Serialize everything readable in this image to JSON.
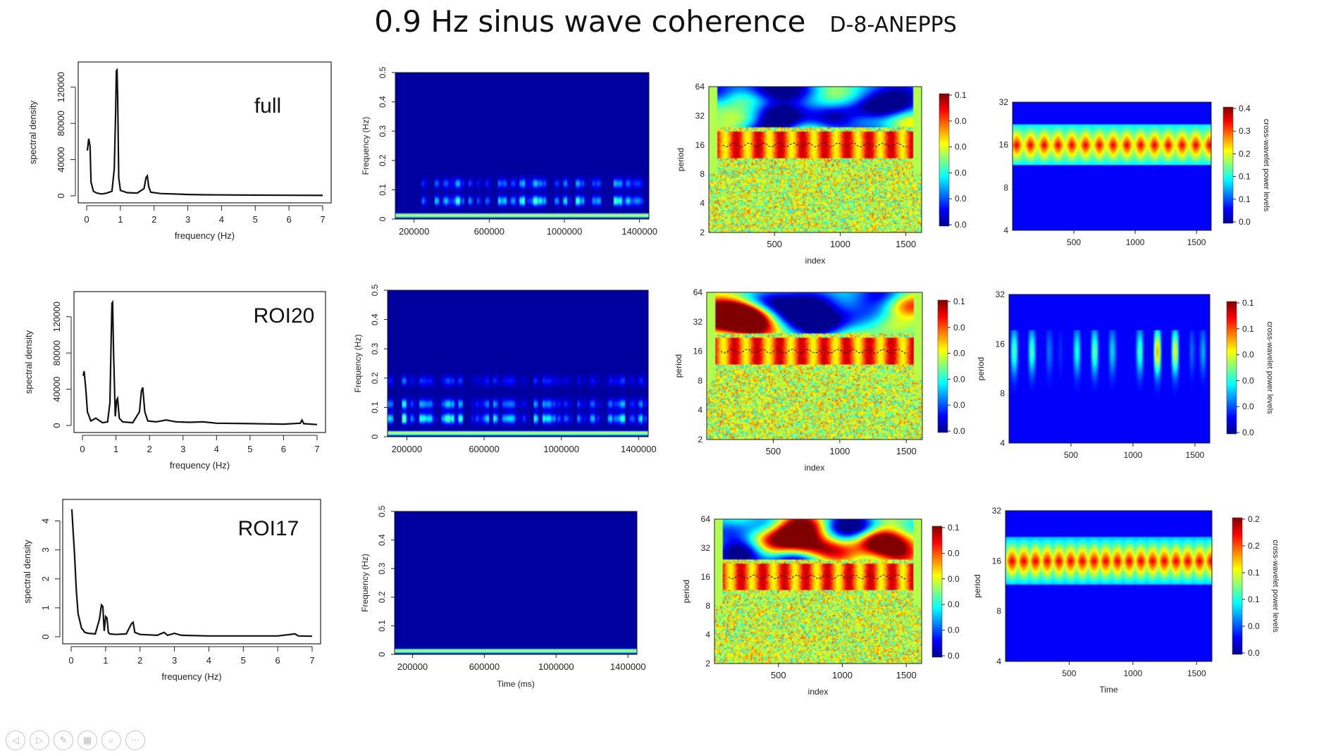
{
  "slide": {
    "title": "0.9 Hz sinus wave coherence",
    "subtitle": "D-8-ANEPPS"
  },
  "colors": {
    "spectrogram_bg": "#00008B",
    "jet": [
      "#00008F",
      "#0000FF",
      "#0080FF",
      "#00FFFF",
      "#80FF80",
      "#FFFF00",
      "#FF8000",
      "#FF0000",
      "#800000"
    ]
  },
  "nav_icons": [
    "prev-icon",
    "next-icon",
    "pen-icon",
    "slides-icon",
    "zoom-icon",
    "more-icon"
  ],
  "chart_data": [
    {
      "id": "spec-full",
      "type": "line",
      "panel_label": "full",
      "xlabel": "frequency (Hz)",
      "ylabel": "spectral density",
      "xlim": [
        0,
        7
      ],
      "ylim": [
        0,
        140000
      ],
      "xticks": [
        0,
        1,
        2,
        3,
        4,
        5,
        6,
        7
      ],
      "yticks": [
        0,
        40000,
        80000,
        120000
      ],
      "x": [
        0.02,
        0.06,
        0.1,
        0.13,
        0.2,
        0.3,
        0.45,
        0.6,
        0.75,
        0.82,
        0.86,
        0.88,
        0.9,
        0.92,
        0.95,
        1.0,
        1.2,
        1.5,
        1.7,
        1.76,
        1.8,
        1.84,
        1.9,
        2.2,
        2.6,
        3.0,
        3.5,
        4.0,
        5.0,
        6.0,
        7.0
      ],
      "y": [
        50000,
        63000,
        55000,
        15000,
        5000,
        3000,
        2000,
        3000,
        5000,
        30000,
        95000,
        138000,
        139000,
        110000,
        20000,
        6000,
        3500,
        3000,
        8000,
        20000,
        22000,
        10000,
        4000,
        2500,
        2000,
        1500,
        1200,
        1000,
        800,
        600,
        500
      ]
    },
    {
      "id": "spec-roi20",
      "type": "line",
      "panel_label": "ROI20",
      "xlabel": "frequency (Hz)",
      "ylabel": "spectral density",
      "xlim": [
        0,
        7
      ],
      "ylim": [
        0,
        140000
      ],
      "xticks": [
        0,
        1,
        2,
        3,
        4,
        5,
        6,
        7
      ],
      "yticks": [
        0,
        40000,
        80000,
        120000
      ],
      "x": [
        0.02,
        0.05,
        0.1,
        0.15,
        0.25,
        0.4,
        0.6,
        0.75,
        0.82,
        0.86,
        0.88,
        0.9,
        0.93,
        0.98,
        1.02,
        1.05,
        1.1,
        1.2,
        1.5,
        1.7,
        1.76,
        1.8,
        1.86,
        1.95,
        2.2,
        2.5,
        2.8,
        3.2,
        3.6,
        4.0,
        5.0,
        6.0,
        6.5,
        6.55,
        6.6,
        6.8,
        7.0
      ],
      "y": [
        55000,
        60000,
        40000,
        15000,
        5000,
        8000,
        3000,
        4000,
        25000,
        100000,
        135000,
        136000,
        80000,
        10000,
        28000,
        30000,
        8000,
        4000,
        3000,
        15000,
        38000,
        42000,
        15000,
        5000,
        4000,
        6000,
        4000,
        3500,
        4000,
        2500,
        2000,
        1500,
        2500,
        6000,
        2000,
        1500,
        1000
      ]
    },
    {
      "id": "spec-roi17",
      "type": "line",
      "panel_label": "ROI17",
      "xlabel": "frequency (Hz)",
      "ylabel": "spectral density",
      "xlim": [
        0,
        7
      ],
      "ylim": [
        0,
        4.5
      ],
      "xticks": [
        0,
        1,
        2,
        3,
        4,
        5,
        6,
        7
      ],
      "yticks": [
        0,
        1,
        2,
        3,
        4
      ],
      "x": [
        0.02,
        0.05,
        0.1,
        0.15,
        0.2,
        0.3,
        0.4,
        0.5,
        0.7,
        0.82,
        0.88,
        0.92,
        0.96,
        1.0,
        1.04,
        1.08,
        1.12,
        1.3,
        1.6,
        1.75,
        1.8,
        1.85,
        2.0,
        2.5,
        2.7,
        2.8,
        3.0,
        3.2,
        3.6,
        4.0,
        5.0,
        6.0,
        6.5,
        6.6,
        7.0
      ],
      "y": [
        4.4,
        3.8,
        2.8,
        1.6,
        0.8,
        0.3,
        0.15,
        0.12,
        0.1,
        0.6,
        1.1,
        1.05,
        0.2,
        0.7,
        0.65,
        0.15,
        0.1,
        0.08,
        0.1,
        0.45,
        0.5,
        0.15,
        0.08,
        0.05,
        0.15,
        0.05,
        0.12,
        0.05,
        0.04,
        0.03,
        0.03,
        0.03,
        0.1,
        0.03,
        0.02
      ]
    },
    {
      "id": "sg-full",
      "type": "heatmap",
      "variant": "spectrogram",
      "xlabel": "",
      "ylabel": "Frequency (Hz)",
      "xlim": [
        100000,
        1450000
      ],
      "ylim": [
        0,
        0.5
      ],
      "xticks": [
        200000,
        600000,
        1000000,
        1400000
      ],
      "yticks": [
        0,
        0.1,
        0.2,
        0.3,
        0.4,
        0.5
      ],
      "bands": [
        {
          "freq": 0.06,
          "intensity": 0.45,
          "span": [
            0.1,
            1.0
          ]
        },
        {
          "freq": 0.12,
          "intensity": 0.3,
          "span": [
            0.1,
            1.0
          ]
        },
        {
          "freq": 0.01,
          "intensity": 1.0,
          "span": [
            0.0,
            1.0
          ]
        }
      ]
    },
    {
      "id": "sg-roi20",
      "type": "heatmap",
      "variant": "spectrogram",
      "xlabel": "",
      "ylabel": "Frequency (Hz)",
      "xlim": [
        100000,
        1450000
      ],
      "ylim": [
        0,
        0.5
      ],
      "xticks": [
        200000,
        600000,
        1000000,
        1400000
      ],
      "yticks": [
        0,
        0.1,
        0.2,
        0.3,
        0.4,
        0.5
      ],
      "bands": [
        {
          "freq": 0.06,
          "intensity": 0.5,
          "span": [
            0.0,
            1.0
          ]
        },
        {
          "freq": 0.11,
          "intensity": 0.35,
          "span": [
            0.0,
            1.0
          ]
        },
        {
          "freq": 0.19,
          "intensity": 0.2,
          "span": [
            0.0,
            1.0
          ]
        },
        {
          "freq": 0.01,
          "intensity": 1.0,
          "span": [
            0.0,
            1.0
          ]
        }
      ]
    },
    {
      "id": "sg-roi17",
      "type": "heatmap",
      "variant": "spectrogram",
      "xlabel": "Time (ms)",
      "ylabel": "Frequency (Hz)",
      "xlim": [
        100000,
        1450000
      ],
      "ylim": [
        0,
        0.5
      ],
      "xticks": [
        200000,
        600000,
        1000000,
        1400000
      ],
      "yticks": [
        0,
        0.1,
        0.2,
        0.3,
        0.4,
        0.5
      ],
      "bands": [
        {
          "freq": 0.01,
          "intensity": 1.0,
          "span": [
            0.0,
            1.0
          ]
        }
      ]
    },
    {
      "id": "wt-full",
      "type": "heatmap",
      "variant": "wavelet",
      "xlabel": "index",
      "ylabel": "period",
      "xlim": [
        0,
        1620
      ],
      "ylim": [
        2,
        64
      ],
      "log_y": true,
      "xticks": [
        500,
        1000,
        1500
      ],
      "yticks": [
        2,
        4,
        8,
        16,
        32,
        64
      ],
      "colorbar_labels": [
        "0.1",
        "0.0",
        "0.0",
        "0.0",
        "0.0",
        "0.0"
      ],
      "ridge_period": 16
    },
    {
      "id": "wt-roi20",
      "type": "heatmap",
      "variant": "wavelet",
      "xlabel": "index",
      "ylabel": "period",
      "xlim": [
        0,
        1620
      ],
      "ylim": [
        2,
        64
      ],
      "log_y": true,
      "xticks": [
        500,
        1000,
        1500
      ],
      "yticks": [
        2,
        4,
        8,
        16,
        32,
        64
      ],
      "colorbar_labels": [
        "0.1",
        "0.0",
        "0.0",
        "0.0",
        "0.0",
        "0.0"
      ],
      "ridge_period": 16
    },
    {
      "id": "wt-roi17",
      "type": "heatmap",
      "variant": "wavelet",
      "xlabel": "index",
      "ylabel": "period",
      "xlim": [
        0,
        1620
      ],
      "ylim": [
        2,
        64
      ],
      "log_y": true,
      "xticks": [
        500,
        1000,
        1500
      ],
      "yticks": [
        2,
        4,
        8,
        16,
        32,
        64
      ],
      "colorbar_labels": [
        "0.1",
        "0.0",
        "0.0",
        "0.0",
        "0.0",
        "0.0"
      ],
      "ridge_period": 16
    },
    {
      "id": "xw-full",
      "type": "heatmap",
      "variant": "cross-wavelet",
      "xlabel": "",
      "ylabel": "",
      "xlim": [
        0,
        1620
      ],
      "ylim": [
        4,
        32
      ],
      "log_y": true,
      "xticks": [
        500,
        1000,
        1500
      ],
      "yticks": [
        4,
        8,
        16,
        32
      ],
      "colorbar_title": "cross-wavelet power levels",
      "colorbar_labels": [
        "0.4",
        "0.3",
        "0.2",
        "0.1",
        "0.1",
        "0.0"
      ],
      "band_period": 16,
      "pattern": "continuous"
    },
    {
      "id": "xw-roi20",
      "type": "heatmap",
      "variant": "cross-wavelet",
      "xlabel": "",
      "ylabel": "period",
      "xlim": [
        0,
        1620
      ],
      "ylim": [
        4,
        32
      ],
      "log_y": true,
      "xticks": [
        500,
        1000,
        1500
      ],
      "yticks": [
        4,
        8,
        16,
        32
      ],
      "colorbar_title": "cross-wavelet power levels",
      "colorbar_labels": [
        "0.1",
        "0.1",
        "0.0",
        "0.0",
        "0.0",
        "0.0"
      ],
      "band_period": 16,
      "pattern": "sparse"
    },
    {
      "id": "xw-roi17",
      "type": "heatmap",
      "variant": "cross-wavelet",
      "xlabel": "Time",
      "ylabel": "period",
      "xlim": [
        0,
        1620
      ],
      "ylim": [
        4,
        32
      ],
      "log_y": true,
      "xticks": [
        500,
        1000,
        1500
      ],
      "yticks": [
        4,
        8,
        16,
        32
      ],
      "colorbar_title": "cross-wavelet power levels",
      "colorbar_labels": [
        "0.2",
        "0.2",
        "0.1",
        "0.1",
        "0.0",
        "0.0"
      ],
      "band_period": 16,
      "pattern": "periodic"
    }
  ]
}
